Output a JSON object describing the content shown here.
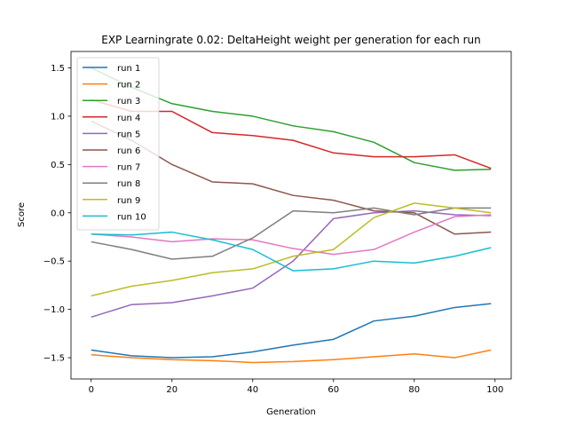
{
  "chart_data": {
    "type": "line",
    "title": "EXP Learningrate 0.02: DeltaHeight weight per generation for each run",
    "xlabel": "Generation",
    "ylabel": "Score",
    "xlim": [
      -5,
      104
    ],
    "ylim": [
      -1.72,
      1.67
    ],
    "xticks": [
      0,
      20,
      40,
      60,
      80,
      100
    ],
    "xtick_labels": [
      "0",
      "20",
      "40",
      "60",
      "80",
      "100"
    ],
    "yticks": [
      -1.5,
      -1.0,
      -0.5,
      0.0,
      0.5,
      1.0,
      1.5
    ],
    "ytick_labels": [
      "−1.5",
      "−1.0",
      "−0.5",
      "0.0",
      "0.5",
      "1.0",
      "1.5"
    ],
    "grid": false,
    "legend_position": "top-left",
    "x": [
      0,
      10,
      20,
      30,
      40,
      50,
      60,
      70,
      80,
      90,
      99
    ],
    "series": [
      {
        "name": "run 1",
        "color": "#1f77b4",
        "values": [
          -1.42,
          -1.48,
          -1.5,
          -1.49,
          -1.44,
          -1.37,
          -1.31,
          -1.12,
          -1.07,
          -0.98,
          -0.94
        ]
      },
      {
        "name": "run 2",
        "color": "#ff7f0e",
        "values": [
          -1.47,
          -1.5,
          -1.52,
          -1.53,
          -1.55,
          -1.54,
          -1.52,
          -1.49,
          -1.46,
          -1.5,
          -1.42
        ]
      },
      {
        "name": "run 3",
        "color": "#2ca02c",
        "values": [
          1.5,
          1.3,
          1.13,
          1.05,
          1.0,
          0.9,
          0.84,
          0.73,
          0.52,
          0.44,
          0.45
        ]
      },
      {
        "name": "run 4",
        "color": "#d62728",
        "values": [
          1.17,
          1.05,
          1.05,
          0.83,
          0.8,
          0.75,
          0.62,
          0.58,
          0.58,
          0.6,
          0.46
        ]
      },
      {
        "name": "run 5",
        "color": "#9467bd",
        "values": [
          -1.08,
          -0.95,
          -0.93,
          -0.86,
          -0.78,
          -0.5,
          -0.06,
          0.0,
          0.02,
          -0.02,
          -0.03
        ]
      },
      {
        "name": "run 6",
        "color": "#8c564b",
        "values": [
          0.95,
          0.75,
          0.5,
          0.32,
          0.3,
          0.18,
          0.13,
          0.02,
          0.0,
          -0.22,
          -0.2
        ]
      },
      {
        "name": "run 7",
        "color": "#e377c2",
        "values": [
          -0.22,
          -0.25,
          -0.3,
          -0.27,
          -0.28,
          -0.37,
          -0.43,
          -0.38,
          -0.2,
          -0.04,
          -0.02
        ]
      },
      {
        "name": "run 8",
        "color": "#7f7f7f",
        "values": [
          -0.3,
          -0.38,
          -0.48,
          -0.45,
          -0.26,
          0.02,
          0.0,
          0.05,
          -0.02,
          0.05,
          0.05
        ]
      },
      {
        "name": "run 9",
        "color": "#bcbd22",
        "values": [
          -0.86,
          -0.76,
          -0.7,
          -0.62,
          -0.58,
          -0.45,
          -0.38,
          -0.05,
          0.1,
          0.05,
          0.0
        ]
      },
      {
        "name": "run 10",
        "color": "#17becf",
        "values": [
          -0.22,
          -0.23,
          -0.2,
          -0.28,
          -0.38,
          -0.6,
          -0.58,
          -0.5,
          -0.52,
          -0.45,
          -0.36
        ]
      }
    ]
  }
}
